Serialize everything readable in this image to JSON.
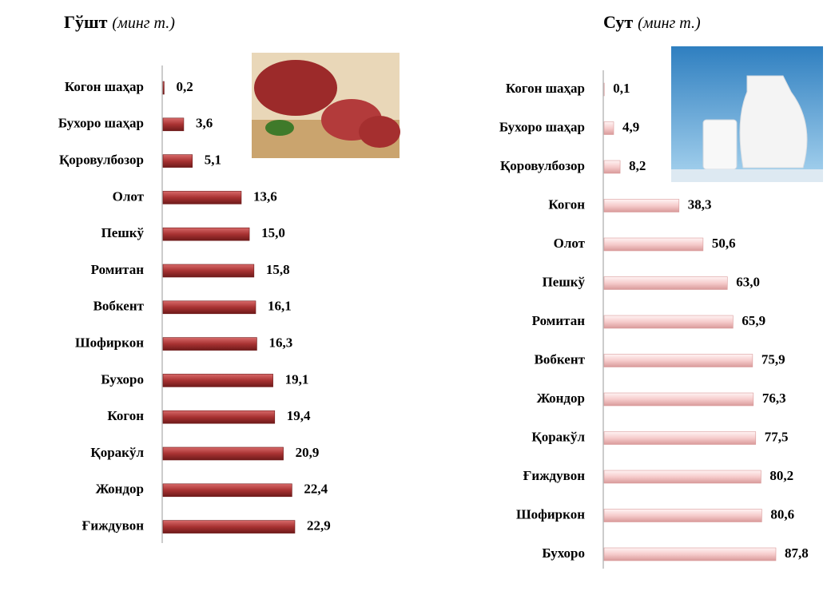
{
  "chart_data": [
    {
      "type": "bar",
      "orientation": "horizontal",
      "title": "Гўшт",
      "subtitle": "(минг т.)",
      "color": "#a83232",
      "categories": [
        "Когон шаҳар",
        "Бухоро шаҳар",
        "Қоровулбозор",
        "Олот",
        "Пешкў",
        "Ромитан",
        "Вобкент",
        "Шофиркон",
        "Бухоро",
        "Когон",
        "Қоракўл",
        "Жондор",
        "Ғиждувон"
      ],
      "values": [
        0.2,
        3.6,
        5.1,
        13.6,
        15.0,
        15.8,
        16.1,
        16.3,
        19.1,
        19.4,
        20.9,
        22.4,
        22.9
      ],
      "value_labels": [
        "0,2",
        "3,6",
        "5,1",
        "13,6",
        "15,0",
        "15,8",
        "16,1",
        "16,3",
        "19,1",
        "19,4",
        "20,9",
        "22,4",
        "22,9"
      ]
    },
    {
      "type": "bar",
      "orientation": "horizontal",
      "title": "Сут",
      "subtitle": "(минг т.)",
      "color": "#f6cccc",
      "categories": [
        "Когон шаҳар",
        "Бухоро шаҳар",
        "Қоровулбозор",
        "Когон",
        "Олот",
        "Пешкў",
        "Ромитан",
        "Вобкент",
        "Жондор",
        "Қоракўл",
        "Ғиждувон",
        "Шофиркон",
        "Бухоро"
      ],
      "values": [
        0.1,
        4.9,
        8.2,
        38.3,
        50.6,
        63.0,
        65.9,
        75.9,
        76.3,
        77.5,
        80.2,
        80.6,
        87.8
      ],
      "value_labels": [
        "0,1",
        "4,9",
        "8,2",
        "38,3",
        "50,6",
        "63,0",
        "65,9",
        "75,9",
        "76,3",
        "77,5",
        "80,2",
        "80,6",
        "87,8"
      ]
    }
  ]
}
